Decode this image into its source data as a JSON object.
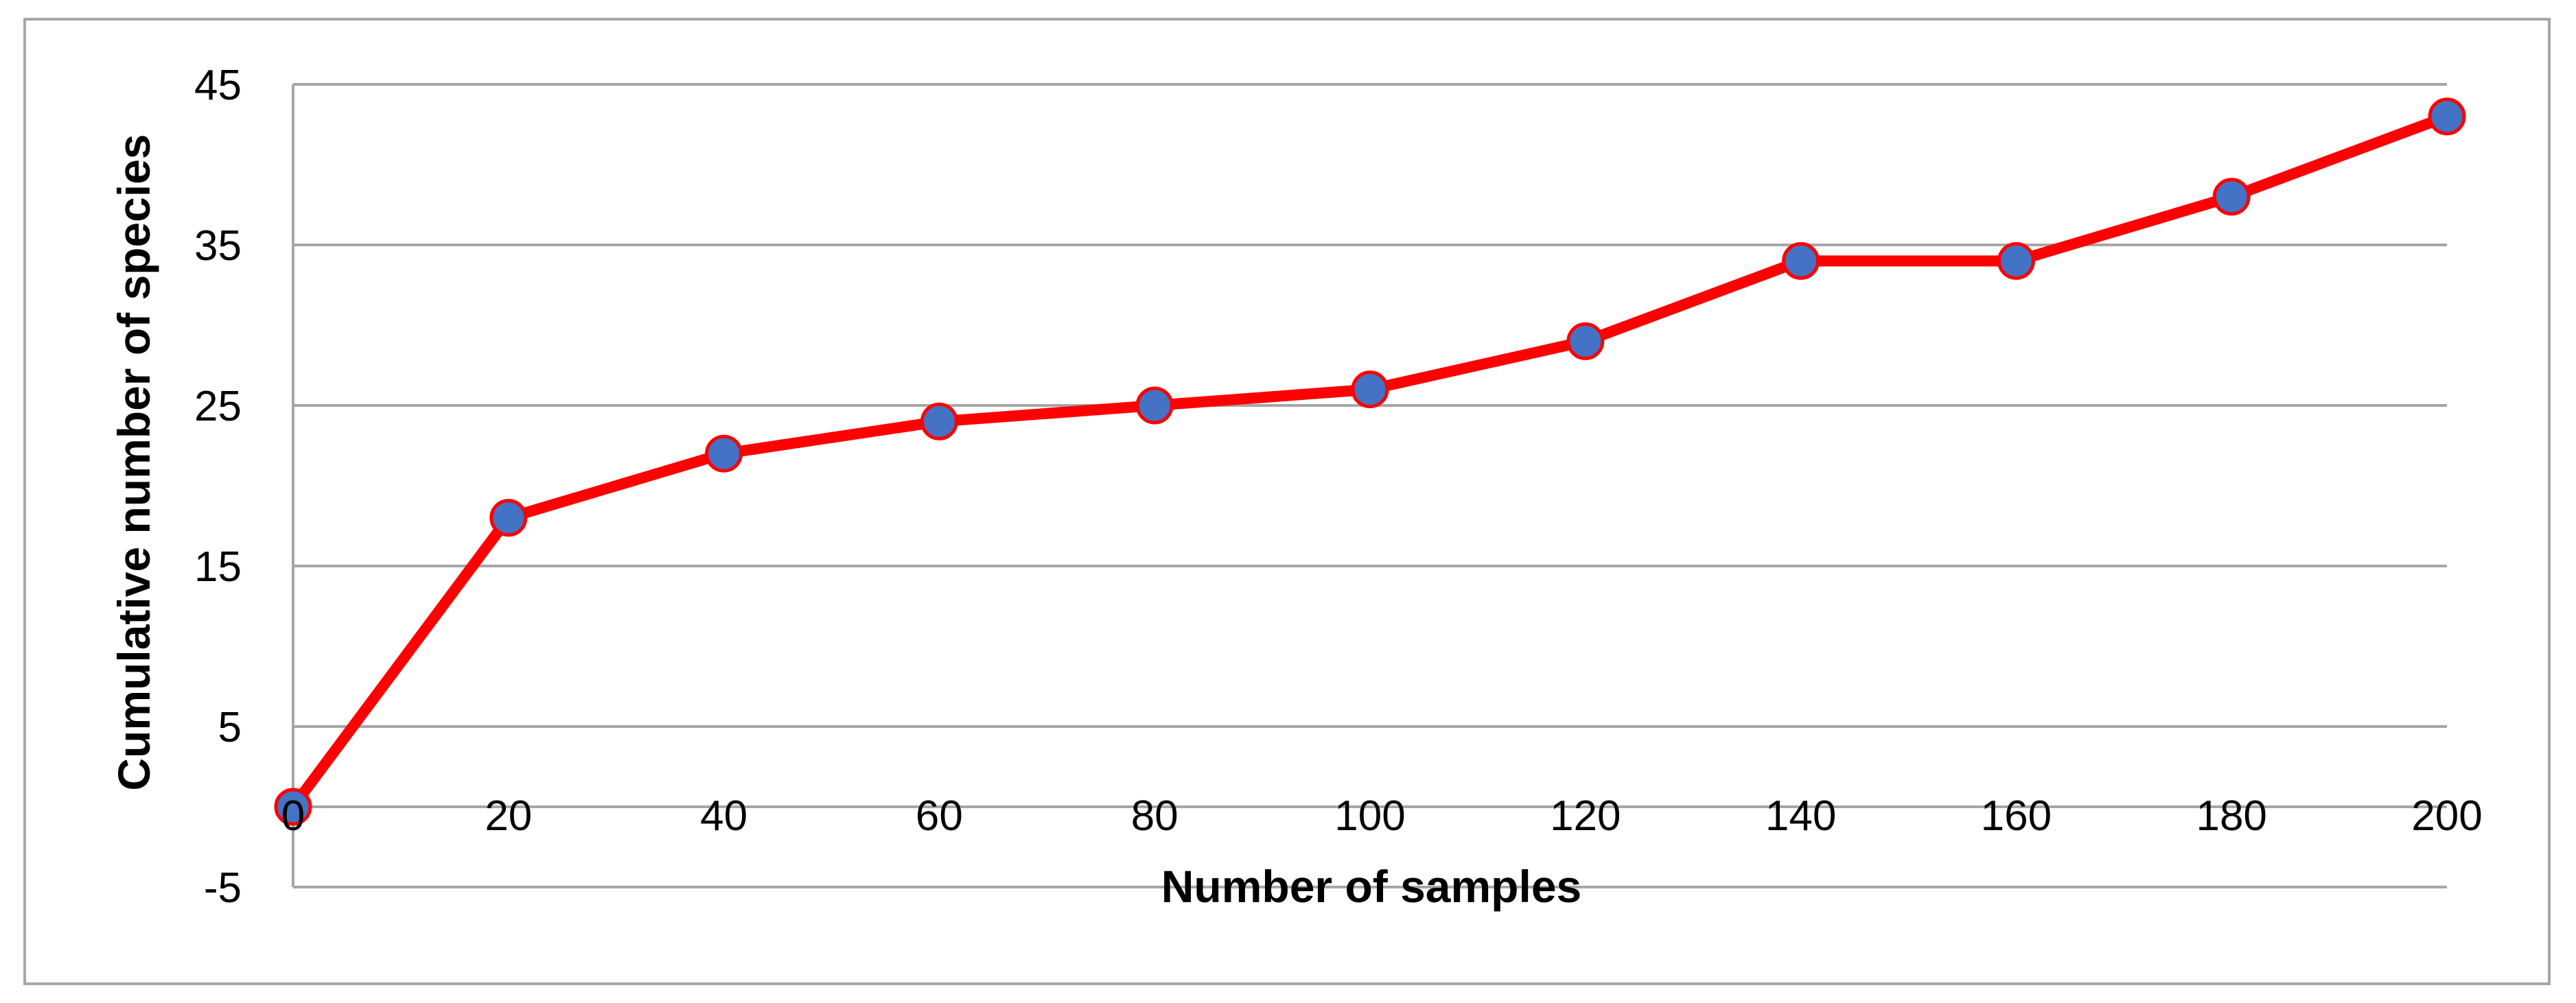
{
  "chart_data": {
    "type": "line",
    "title": "",
    "xlabel": "Number of samples",
    "ylabel": "Cumulative number of species",
    "x": [
      0,
      20,
      40,
      60,
      80,
      100,
      120,
      140,
      160,
      180,
      200
    ],
    "series": [
      {
        "values": [
          0,
          18,
          22,
          24,
          25,
          26,
          29,
          34,
          34,
          38,
          43
        ]
      }
    ],
    "x_ticks": [
      "0",
      "20",
      "40",
      "60",
      "80",
      "100",
      "120",
      "140",
      "160",
      "180",
      "200"
    ],
    "y_ticks": [
      "-5",
      "5",
      "15",
      "25",
      "35",
      "45"
    ],
    "y_tick_values": [
      -5,
      5,
      15,
      25,
      35,
      45
    ],
    "xlim": [
      0,
      200
    ],
    "ylim": [
      -5,
      45
    ],
    "grid": true,
    "legend": "none",
    "colors": {
      "line": "#ff0000",
      "marker_fill": "#4472c4",
      "marker_edge": "#ff0000",
      "grid": "#a6a6a6",
      "axis": "#a6a6a6"
    }
  }
}
